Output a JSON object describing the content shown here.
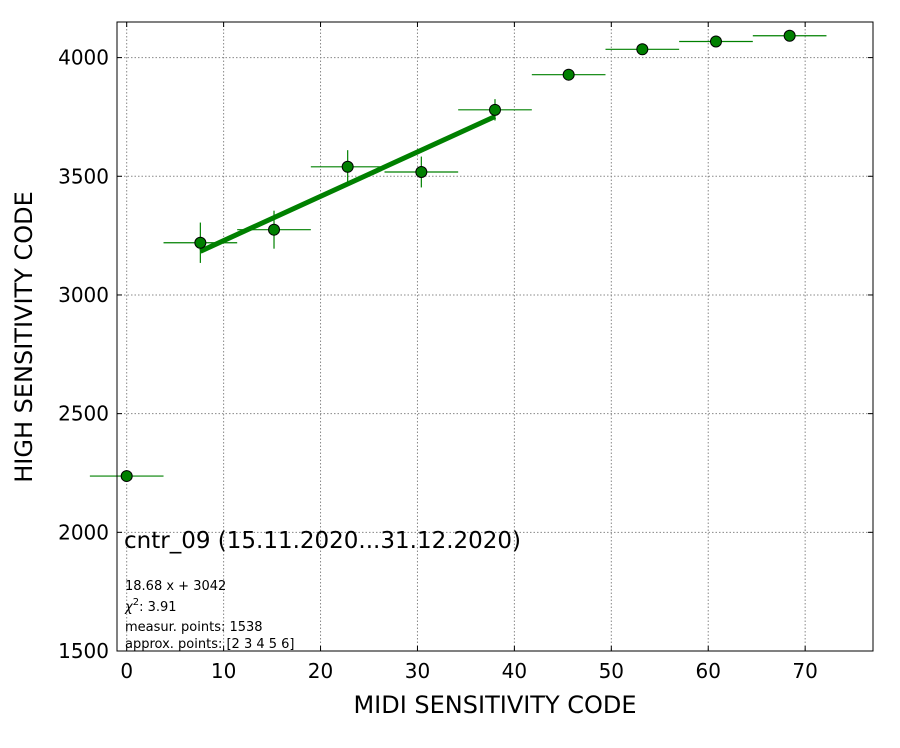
{
  "chart_data": {
    "type": "scatter",
    "xlabel": "MIDI SENSITIVITY CODE",
    "ylabel": "HIGH SENSITIVITY CODE",
    "xlim": [
      -1,
      77
    ],
    "ylim": [
      1500,
      4150
    ],
    "xticks": [
      0,
      10,
      20,
      30,
      40,
      50,
      60,
      70
    ],
    "yticks": [
      1500,
      2000,
      2500,
      3000,
      3500,
      4000
    ],
    "grid": true,
    "marker_color": "#008000",
    "fit_color": "#008000",
    "points": [
      {
        "x": 0,
        "y": 2237,
        "xerr": 3.8,
        "yerr": 0
      },
      {
        "x": 7.6,
        "y": 3220,
        "xerr": 3.8,
        "yerr": 85
      },
      {
        "x": 15.2,
        "y": 3275,
        "xerr": 3.8,
        "yerr": 80
      },
      {
        "x": 22.8,
        "y": 3540,
        "xerr": 3.8,
        "yerr": 70
      },
      {
        "x": 30.4,
        "y": 3518,
        "xerr": 3.8,
        "yerr": 65
      },
      {
        "x": 38.0,
        "y": 3780,
        "xerr": 3.8,
        "yerr": 45
      },
      {
        "x": 45.6,
        "y": 3928,
        "xerr": 3.8,
        "yerr": 20
      },
      {
        "x": 53.2,
        "y": 4035,
        "xerr": 3.8,
        "yerr": 15
      },
      {
        "x": 60.8,
        "y": 4068,
        "xerr": 3.8,
        "yerr": 10
      },
      {
        "x": 68.4,
        "y": 4092,
        "xerr": 3.8,
        "yerr": 8
      }
    ],
    "fit": {
      "slope": 18.68,
      "intercept": 3042,
      "x_range": [
        7.6,
        38.0
      ]
    },
    "annotations": {
      "title": "cntr_09 (15.11.2020...31.12.2020)",
      "equation": "18.68 x + 3042",
      "chi_label": "χ",
      "chi_sup": "2",
      "chi_value": ": 3.91",
      "measur": "measur. points: 1538",
      "approx": "approx. points: [2 3 4 5 6]"
    }
  }
}
